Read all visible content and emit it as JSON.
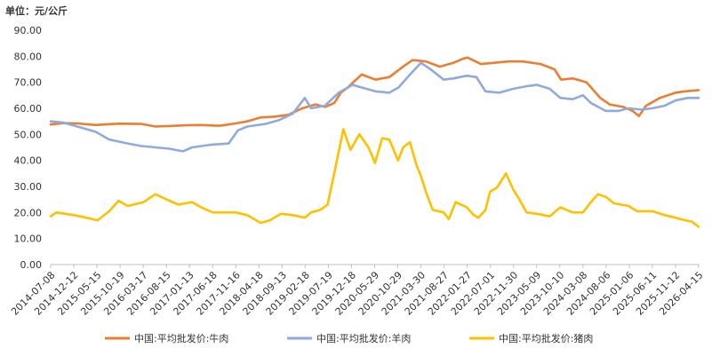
{
  "unit_label": "单位：元/公斤",
  "chart_data": {
    "type": "line",
    "title": "",
    "xlabel": "",
    "ylabel": "",
    "ylim": [
      0,
      90
    ],
    "y_ticks": [
      "0.00",
      "10.00",
      "20.00",
      "30.00",
      "40.00",
      "50.00",
      "60.00",
      "70.00",
      "80.00",
      "90.00"
    ],
    "grid": false,
    "legend_position": "bottom",
    "x_ticks": [
      "2014-07-08",
      "2014-12-12",
      "2015-05-15",
      "2015-10-19",
      "2016-03-17",
      "2016-08-15",
      "2017-01-13",
      "2017-06-18",
      "2017-11-16",
      "2018-04-18",
      "2018-09-13",
      "2019-02-18",
      "2019-07-19",
      "2019-12-18",
      "2020-05-29",
      "2020-10-29",
      "2021-03-30",
      "2021-08-27",
      "2022-01-27",
      "2022-07-01",
      "2022-11-30",
      "2023-05-09",
      "2023-10-10",
      "2024-03-08",
      "2024-08-06",
      "2025-01-06",
      "2025-06-11",
      "2025-11-12",
      "2026-04-15"
    ],
    "x_start": "2014-07-08",
    "x_end": "2026-04-15",
    "series": [
      {
        "name": "中国:平均批发价:牛肉",
        "color": "#ED7D31",
        "points": [
          [
            "2014-07-08",
            53.8
          ],
          [
            "2014-10-01",
            54.3
          ],
          [
            "2015-01-01",
            54.2
          ],
          [
            "2015-05-01",
            53.6
          ],
          [
            "2015-10-01",
            54.1
          ],
          [
            "2016-03-01",
            54.0
          ],
          [
            "2016-06-01",
            53.0
          ],
          [
            "2016-09-01",
            53.2
          ],
          [
            "2017-01-01",
            53.5
          ],
          [
            "2017-04-01",
            53.6
          ],
          [
            "2017-08-01",
            53.3
          ],
          [
            "2017-11-16",
            54.2
          ],
          [
            "2018-02-01",
            55.0
          ],
          [
            "2018-05-01",
            56.5
          ],
          [
            "2018-08-01",
            56.8
          ],
          [
            "2018-11-01",
            57.5
          ],
          [
            "2019-02-01",
            60.0
          ],
          [
            "2019-05-01",
            61.5
          ],
          [
            "2019-07-01",
            60.5
          ],
          [
            "2019-09-01",
            62.0
          ],
          [
            "2019-10-15",
            66.0
          ],
          [
            "2019-12-01",
            68.0
          ],
          [
            "2020-01-15",
            70.5
          ],
          [
            "2020-03-01",
            73.0
          ],
          [
            "2020-06-01",
            71.0
          ],
          [
            "2020-09-01",
            72.0
          ],
          [
            "2020-12-01",
            76.0
          ],
          [
            "2021-02-01",
            78.5
          ],
          [
            "2021-05-01",
            78.0
          ],
          [
            "2021-08-01",
            76.0
          ],
          [
            "2021-11-01",
            77.5
          ],
          [
            "2022-01-01",
            79.0
          ],
          [
            "2022-02-01",
            79.5
          ],
          [
            "2022-05-01",
            77.0
          ],
          [
            "2022-08-01",
            77.5
          ],
          [
            "2022-11-01",
            78.0
          ],
          [
            "2023-02-01",
            78.0
          ],
          [
            "2023-06-01",
            77.0
          ],
          [
            "2023-09-01",
            75.0
          ],
          [
            "2023-10-15",
            71.0
          ],
          [
            "2024-01-01",
            71.5
          ],
          [
            "2024-04-01",
            70.0
          ],
          [
            "2024-07-01",
            64.0
          ],
          [
            "2024-09-01",
            61.5
          ],
          [
            "2024-12-01",
            60.5
          ],
          [
            "2025-02-01",
            59.0
          ],
          [
            "2025-03-15",
            57.0
          ],
          [
            "2025-05-01",
            61.0
          ],
          [
            "2025-08-01",
            64.0
          ],
          [
            "2025-11-12",
            66.0
          ],
          [
            "2026-01-15",
            66.5
          ],
          [
            "2026-04-15",
            67.0
          ]
        ]
      },
      {
        "name": "中国:平均批发价:羊肉",
        "color": "#8FAADC",
        "points": [
          [
            "2014-07-08",
            55.0
          ],
          [
            "2014-10-01",
            54.5
          ],
          [
            "2015-01-01",
            53.0
          ],
          [
            "2015-05-01",
            51.0
          ],
          [
            "2015-08-01",
            48.0
          ],
          [
            "2015-12-01",
            46.5
          ],
          [
            "2016-03-01",
            45.5
          ],
          [
            "2016-06-01",
            45.0
          ],
          [
            "2016-09-01",
            44.5
          ],
          [
            "2016-12-01",
            43.5
          ],
          [
            "2017-02-01",
            45.0
          ],
          [
            "2017-06-01",
            46.0
          ],
          [
            "2017-10-01",
            46.5
          ],
          [
            "2017-12-01",
            51.5
          ],
          [
            "2018-02-01",
            53.0
          ],
          [
            "2018-06-01",
            54.0
          ],
          [
            "2018-09-01",
            55.5
          ],
          [
            "2018-12-01",
            58.0
          ],
          [
            "2019-02-18",
            64.0
          ],
          [
            "2019-04-01",
            60.0
          ],
          [
            "2019-07-01",
            61.0
          ],
          [
            "2019-10-01",
            66.0
          ],
          [
            "2020-01-01",
            69.0
          ],
          [
            "2020-03-01",
            68.0
          ],
          [
            "2020-06-01",
            66.5
          ],
          [
            "2020-09-01",
            66.0
          ],
          [
            "2020-11-01",
            68.0
          ],
          [
            "2021-01-01",
            72.0
          ],
          [
            "2021-03-30",
            77.5
          ],
          [
            "2021-06-01",
            75.0
          ],
          [
            "2021-08-27",
            71.0
          ],
          [
            "2021-11-01",
            71.5
          ],
          [
            "2022-01-27",
            72.5
          ],
          [
            "2022-04-01",
            72.0
          ],
          [
            "2022-06-01",
            66.5
          ],
          [
            "2022-09-01",
            66.0
          ],
          [
            "2022-12-01",
            67.5
          ],
          [
            "2023-03-01",
            68.5
          ],
          [
            "2023-05-09",
            69.0
          ],
          [
            "2023-08-01",
            67.5
          ],
          [
            "2023-10-10",
            64.0
          ],
          [
            "2024-01-01",
            63.5
          ],
          [
            "2024-03-08",
            65.0
          ],
          [
            "2024-05-01",
            62.0
          ],
          [
            "2024-08-06",
            59.0
          ],
          [
            "2024-11-01",
            59.0
          ],
          [
            "2025-01-06",
            60.0
          ],
          [
            "2025-04-01",
            59.5
          ],
          [
            "2025-06-11",
            60.0
          ],
          [
            "2025-09-01",
            61.0
          ],
          [
            "2025-11-12",
            63.0
          ],
          [
            "2026-02-01",
            64.0
          ],
          [
            "2026-04-15",
            64.0
          ]
        ]
      },
      {
        "name": "中国:平均批发价:猪肉",
        "color": "#FFC000",
        "points": [
          [
            "2014-07-08",
            18.5
          ],
          [
            "2014-08-15",
            20.0
          ],
          [
            "2014-12-12",
            19.0
          ],
          [
            "2015-03-01",
            18.0
          ],
          [
            "2015-05-15",
            17.0
          ],
          [
            "2015-08-01",
            20.5
          ],
          [
            "2015-10-01",
            24.5
          ],
          [
            "2015-12-01",
            22.5
          ],
          [
            "2016-03-17",
            24.0
          ],
          [
            "2016-06-01",
            27.0
          ],
          [
            "2016-08-15",
            25.0
          ],
          [
            "2016-11-01",
            23.0
          ],
          [
            "2017-02-01",
            24.0
          ],
          [
            "2017-04-01",
            22.0
          ],
          [
            "2017-06-18",
            20.0
          ],
          [
            "2017-09-01",
            20.0
          ],
          [
            "2017-11-16",
            20.0
          ],
          [
            "2018-02-01",
            19.0
          ],
          [
            "2018-05-01",
            16.0
          ],
          [
            "2018-07-01",
            17.0
          ],
          [
            "2018-09-13",
            19.5
          ],
          [
            "2018-12-01",
            19.0
          ],
          [
            "2019-02-18",
            18.0
          ],
          [
            "2019-04-01",
            20.0
          ],
          [
            "2019-06-01",
            21.0
          ],
          [
            "2019-07-19",
            23.0
          ],
          [
            "2019-09-01",
            35.0
          ],
          [
            "2019-11-01",
            52.0
          ],
          [
            "2019-12-18",
            44.0
          ],
          [
            "2020-02-15",
            50.0
          ],
          [
            "2020-04-15",
            45.0
          ],
          [
            "2020-05-29",
            39.0
          ],
          [
            "2020-07-15",
            48.5
          ],
          [
            "2020-09-01",
            48.0
          ],
          [
            "2020-10-29",
            40.0
          ],
          [
            "2020-12-01",
            45.0
          ],
          [
            "2021-01-15",
            47.0
          ],
          [
            "2021-03-01",
            38.0
          ],
          [
            "2021-03-30",
            34.0
          ],
          [
            "2021-05-01",
            28.0
          ],
          [
            "2021-06-15",
            21.0
          ],
          [
            "2021-08-27",
            20.0
          ],
          [
            "2021-10-01",
            17.5
          ],
          [
            "2021-11-15",
            24.0
          ],
          [
            "2022-01-27",
            22.0
          ],
          [
            "2022-03-15",
            19.0
          ],
          [
            "2022-04-15",
            18.0
          ],
          [
            "2022-06-01",
            21.0
          ],
          [
            "2022-07-01",
            28.0
          ],
          [
            "2022-08-15",
            29.5
          ],
          [
            "2022-10-15",
            35.0
          ],
          [
            "2022-11-30",
            29.0
          ],
          [
            "2023-01-01",
            26.0
          ],
          [
            "2023-03-01",
            20.0
          ],
          [
            "2023-05-09",
            19.5
          ],
          [
            "2023-08-01",
            18.5
          ],
          [
            "2023-10-10",
            22.0
          ],
          [
            "2024-01-01",
            20.0
          ],
          [
            "2024-03-08",
            20.0
          ],
          [
            "2024-05-01",
            24.0
          ],
          [
            "2024-06-15",
            27.0
          ],
          [
            "2024-08-06",
            26.0
          ],
          [
            "2024-10-01",
            23.5
          ],
          [
            "2025-01-06",
            22.5
          ],
          [
            "2025-03-01",
            20.5
          ],
          [
            "2025-06-11",
            20.5
          ],
          [
            "2025-09-01",
            19.0
          ],
          [
            "2025-11-12",
            18.0
          ],
          [
            "2026-01-15",
            17.0
          ],
          [
            "2026-03-01",
            16.5
          ],
          [
            "2026-04-15",
            14.5
          ]
        ]
      }
    ]
  }
}
